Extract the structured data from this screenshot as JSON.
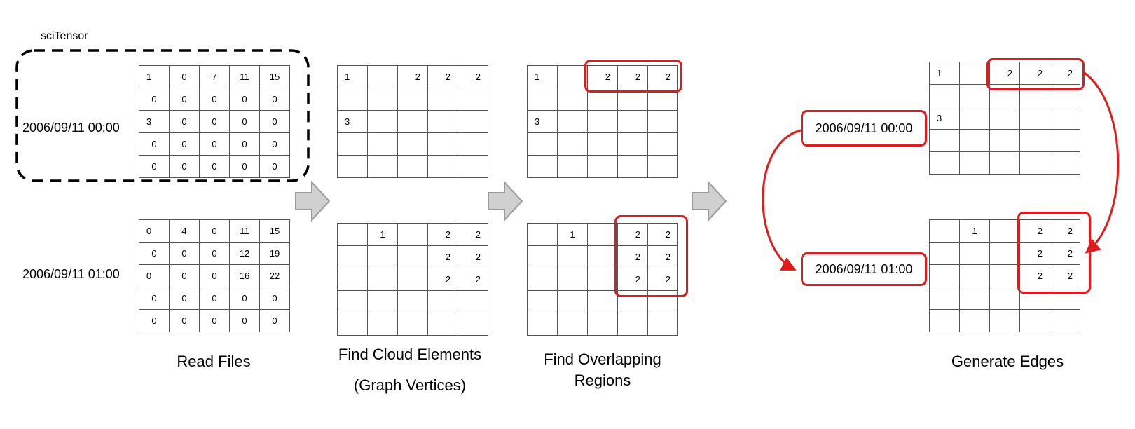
{
  "labels": {
    "scitensor": "sciTensor",
    "time1": "2006/09/11 00:00",
    "time2": "2006/09/11 01:00"
  },
  "captions": {
    "read_files": "Read Files",
    "find_cloud_line1": "Find Cloud Elements",
    "find_cloud_line2": "(Graph Vertices)",
    "find_overlap_line1": "Find Overlapping",
    "find_overlap_line2": "Regions",
    "generate_edges": "Generate Edges"
  },
  "grids": {
    "read_t1": [
      [
        "1",
        "0",
        "7",
        "11",
        "15"
      ],
      [
        "0",
        "0",
        "0",
        "0",
        "0"
      ],
      [
        "3",
        "0",
        "0",
        "0",
        "0"
      ],
      [
        "0",
        "0",
        "0",
        "0",
        "0"
      ],
      [
        "0",
        "0",
        "0",
        "0",
        "0"
      ]
    ],
    "read_t2": [
      [
        "0",
        "4",
        "0",
        "11",
        "15"
      ],
      [
        "0",
        "0",
        "0",
        "12",
        "19"
      ],
      [
        "0",
        "0",
        "0",
        "16",
        "22"
      ],
      [
        "0",
        "0",
        "0",
        "0",
        "0"
      ],
      [
        "0",
        "0",
        "0",
        "0",
        "0"
      ]
    ],
    "cloud_t1": [
      [
        "1",
        "",
        "2",
        "2",
        "2"
      ],
      [
        "",
        "",
        "",
        "",
        ""
      ],
      [
        "3",
        "",
        "",
        "",
        ""
      ],
      [
        "",
        "",
        "",
        "",
        ""
      ],
      [
        "",
        "",
        "",
        "",
        ""
      ]
    ],
    "cloud_t2": [
      [
        "",
        "1",
        "",
        "2",
        "2"
      ],
      [
        "",
        "",
        "",
        "2",
        "2"
      ],
      [
        "",
        "",
        "",
        "2",
        "2"
      ],
      [
        "",
        "",
        "",
        "",
        ""
      ],
      [
        "",
        "",
        "",
        "",
        ""
      ]
    ]
  },
  "colors": {
    "accent_red": "#e01b1b",
    "arrow_gray": "#d0d0d0",
    "grid_line": "#555555"
  }
}
